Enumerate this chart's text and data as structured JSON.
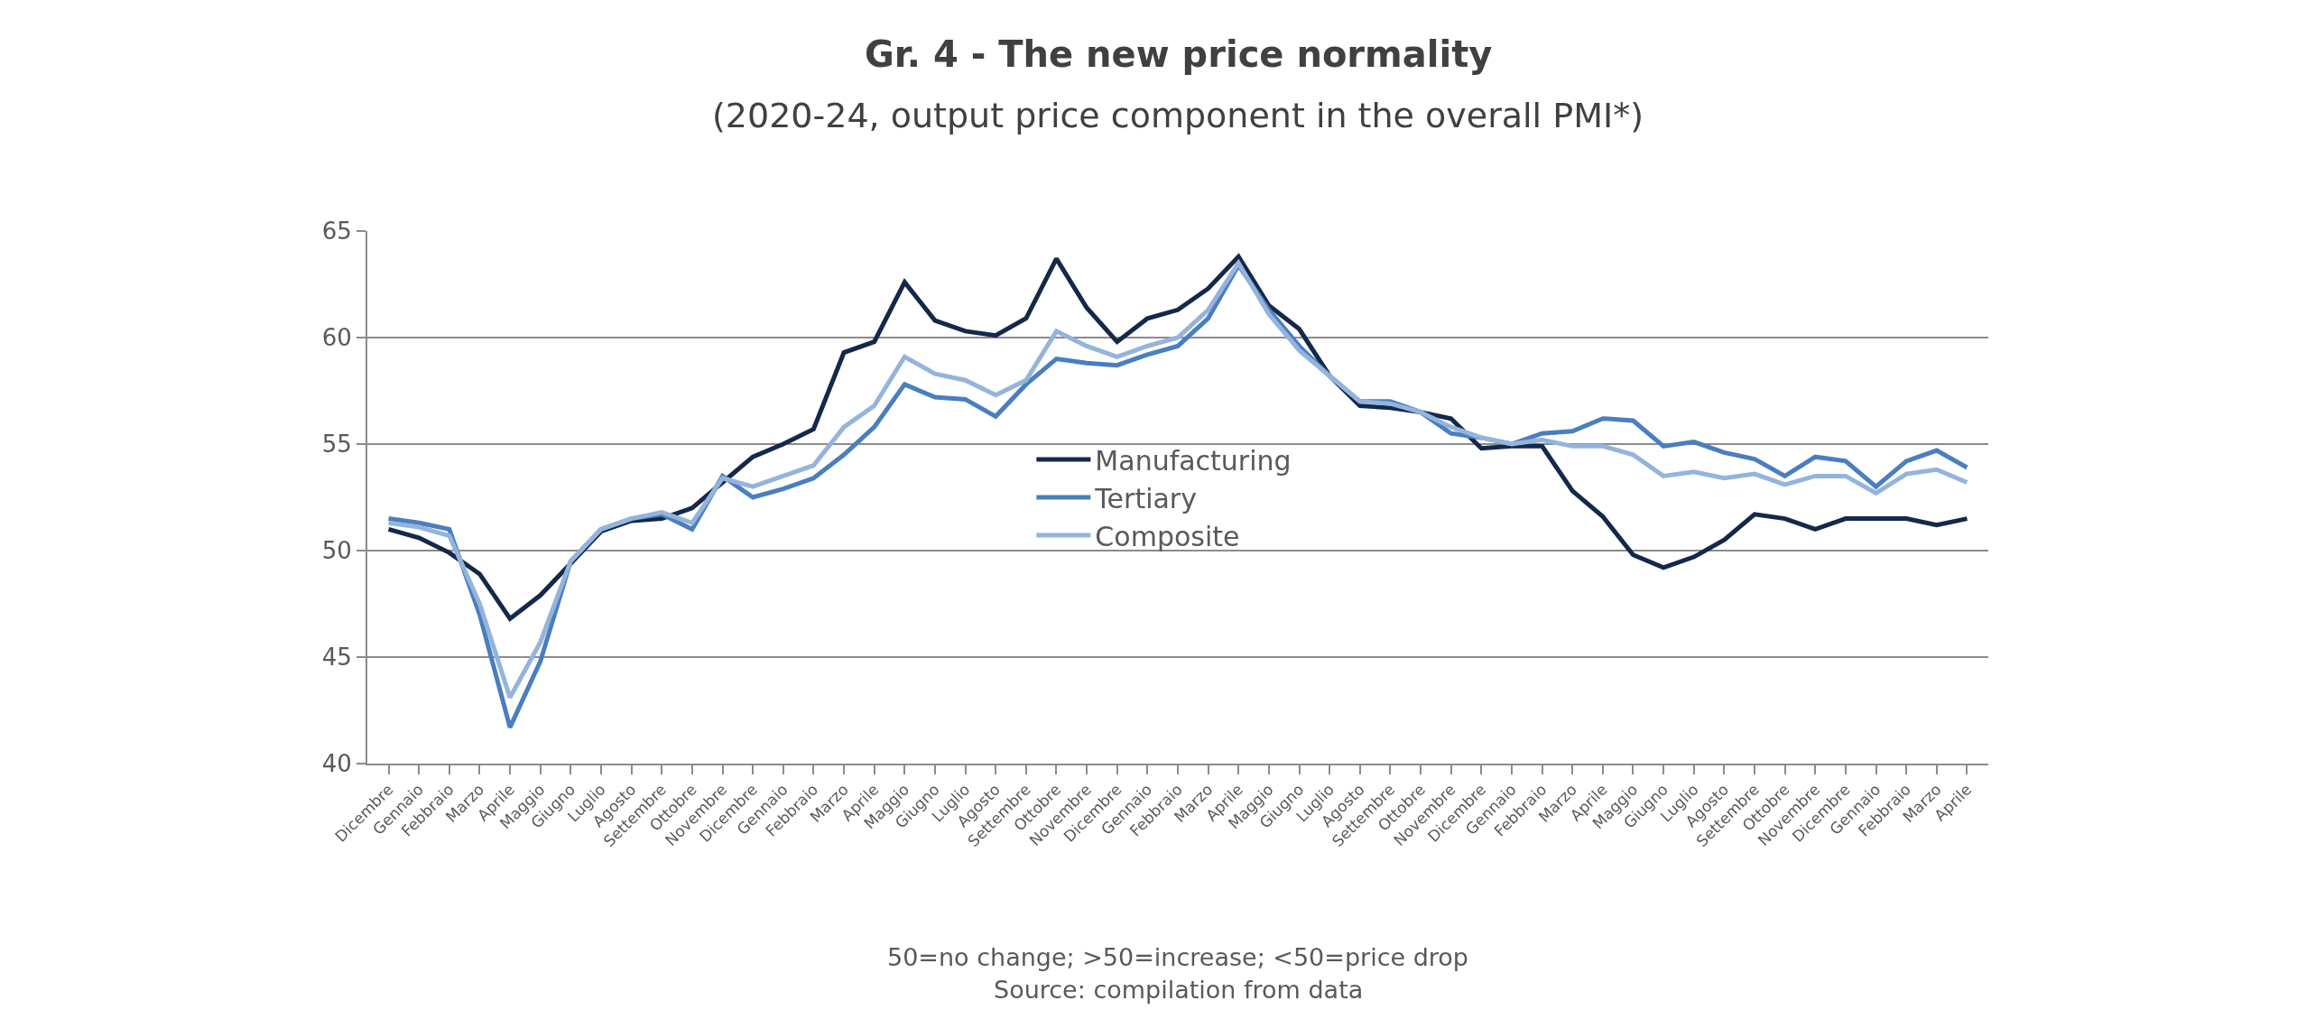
{
  "chart_data": {
    "type": "line",
    "title": "Gr. 4 - The new price normality",
    "subtitle": "(2020-24, output price component in the overall PMI*)",
    "categories": [
      "Dicembre",
      "Gennaio",
      "Febbraio",
      "Marzo",
      "Aprile",
      "Maggio",
      "Giugno",
      "Luglio",
      "Agosto",
      "Settembre",
      "Ottobre",
      "Novembre",
      "Dicembre",
      "Gennaio",
      "Febbraio",
      "Marzo",
      "Aprile",
      "Maggio",
      "Giugno",
      "Luglio",
      "Agosto",
      "Settembre",
      "Ottobre",
      "Novembre",
      "Dicembre",
      "Gennaio",
      "Febbraio",
      "Marzo",
      "Aprile",
      "Maggio",
      "Giugno",
      "Luglio",
      "Agosto",
      "Settembre",
      "Ottobre",
      "Novembre",
      "Dicembre",
      "Gennaio",
      "Febbraio",
      "Marzo",
      "Aprile",
      "Maggio",
      "Giugno",
      "Luglio",
      "Agosto",
      "Settembre",
      "Ottobre",
      "Novembre",
      "Dicembre",
      "Gennaio",
      "Febbraio",
      "Marzo",
      "Aprile"
    ],
    "series": [
      {
        "name": "Manufacturing",
        "color": "#14284b",
        "values": [
          51.0,
          50.6,
          49.9,
          48.9,
          46.8,
          47.9,
          49.4,
          50.9,
          51.4,
          51.5,
          52.0,
          53.2,
          54.4,
          55.0,
          55.7,
          59.3,
          59.8,
          62.6,
          60.8,
          60.3,
          60.1,
          60.9,
          63.7,
          61.4,
          59.8,
          60.9,
          61.3,
          62.3,
          63.8,
          61.5,
          60.4,
          58.2,
          56.8,
          56.7,
          56.5,
          56.2,
          54.8,
          54.9,
          54.9,
          52.8,
          51.6,
          49.8,
          49.2,
          49.7,
          50.5,
          51.7,
          51.5,
          51.0,
          51.5,
          51.5,
          51.5,
          51.2,
          51.5
        ]
      },
      {
        "name": "Tertiary",
        "color": "#4a7ebf",
        "values": [
          51.5,
          51.3,
          51.0,
          47.0,
          41.7,
          44.8,
          49.5,
          51.0,
          51.5,
          51.7,
          51.0,
          53.5,
          52.5,
          52.9,
          53.4,
          54.5,
          55.8,
          57.8,
          57.2,
          57.1,
          56.3,
          57.8,
          59.0,
          58.8,
          58.7,
          59.2,
          59.6,
          60.9,
          63.4,
          61.3,
          59.6,
          58.2,
          57.0,
          57.0,
          56.5,
          55.5,
          55.3,
          55.0,
          55.5,
          55.6,
          56.2,
          56.1,
          54.9,
          55.1,
          54.6,
          54.3,
          53.5,
          54.4,
          54.2,
          53.0,
          54.2,
          54.7,
          53.9
        ]
      },
      {
        "name": "Composite",
        "color": "#94b4dc",
        "values": [
          51.3,
          51.1,
          50.7,
          47.5,
          43.1,
          45.7,
          49.5,
          51.0,
          51.5,
          51.8,
          51.3,
          53.4,
          53.0,
          53.5,
          54.0,
          55.8,
          56.8,
          59.1,
          58.3,
          58.0,
          57.3,
          58.0,
          60.3,
          59.6,
          59.1,
          59.6,
          60.0,
          61.3,
          63.5,
          61.1,
          59.4,
          58.2,
          57.0,
          56.9,
          56.5,
          55.8,
          55.3,
          55.0,
          55.2,
          54.9,
          54.9,
          54.5,
          53.5,
          53.7,
          53.4,
          53.6,
          53.1,
          53.5,
          53.5,
          52.7,
          53.6,
          53.8,
          53.2
        ]
      }
    ],
    "ylim": [
      40,
      65
    ],
    "yticks": [
      40,
      45,
      50,
      55,
      60,
      65
    ],
    "grid": "y",
    "legend": "center",
    "marker": "none",
    "line_style": "solid",
    "annotations": [
      "50=no change; >50=increase; <50=price drop",
      "Source: compilation from data"
    ]
  }
}
